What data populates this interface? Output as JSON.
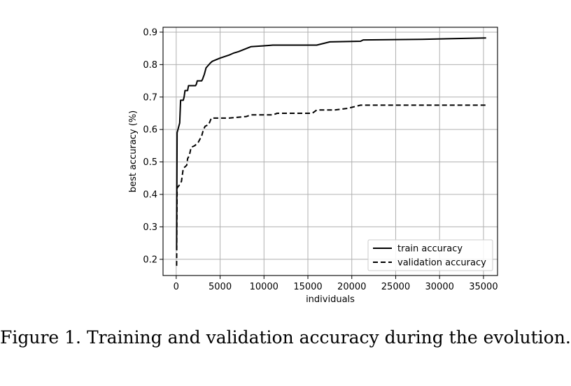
{
  "caption": "Figure 1.  Training and validation accuracy during the evolution.",
  "chart_data": {
    "type": "line",
    "title": "",
    "xlabel": "individuals",
    "ylabel": "best accuracy (%)",
    "xlim": [
      -1500,
      36600
    ],
    "ylim": [
      0.15,
      0.915
    ],
    "xticks": [
      0,
      5000,
      10000,
      15000,
      20000,
      25000,
      30000,
      35000
    ],
    "yticks": [
      0.2,
      0.3,
      0.4,
      0.5,
      0.6,
      0.7,
      0.8,
      0.9
    ],
    "xtick_labels": [
      "0",
      "5000",
      "10000",
      "15000",
      "20000",
      "25000",
      "30000",
      "35000"
    ],
    "ytick_labels": [
      "0.2",
      "0.3",
      "0.4",
      "0.5",
      "0.6",
      "0.7",
      "0.8",
      "0.9"
    ],
    "grid": true,
    "legend_position": "lower-right",
    "series": [
      {
        "name": "train accuracy",
        "line_style": "solid",
        "color": "#000000",
        "points": [
          [
            50,
            0.23
          ],
          [
            100,
            0.59
          ],
          [
            400,
            0.62
          ],
          [
            500,
            0.69
          ],
          [
            800,
            0.69
          ],
          [
            900,
            0.7
          ],
          [
            1000,
            0.72
          ],
          [
            1300,
            0.72
          ],
          [
            1400,
            0.735
          ],
          [
            2200,
            0.735
          ],
          [
            2300,
            0.74
          ],
          [
            2400,
            0.75
          ],
          [
            2900,
            0.75
          ],
          [
            3000,
            0.755
          ],
          [
            3200,
            0.77
          ],
          [
            3400,
            0.79
          ],
          [
            3900,
            0.805
          ],
          [
            4100,
            0.81
          ],
          [
            5000,
            0.82
          ],
          [
            6100,
            0.83
          ],
          [
            6500,
            0.835
          ],
          [
            7100,
            0.84
          ],
          [
            8500,
            0.855
          ],
          [
            10000,
            0.858
          ],
          [
            11000,
            0.86
          ],
          [
            16000,
            0.86
          ],
          [
            17500,
            0.87
          ],
          [
            21000,
            0.872
          ],
          [
            21300,
            0.876
          ],
          [
            28000,
            0.878
          ],
          [
            35300,
            0.882
          ]
        ]
      },
      {
        "name": "validation accuracy",
        "line_style": "dashed",
        "color": "#000000",
        "points": [
          [
            50,
            0.18
          ],
          [
            100,
            0.42
          ],
          [
            400,
            0.43
          ],
          [
            600,
            0.44
          ],
          [
            800,
            0.48
          ],
          [
            1200,
            0.49
          ],
          [
            1300,
            0.51
          ],
          [
            1500,
            0.52
          ],
          [
            1700,
            0.545
          ],
          [
            2100,
            0.55
          ],
          [
            2500,
            0.56
          ],
          [
            2900,
            0.58
          ],
          [
            3100,
            0.6
          ],
          [
            3300,
            0.61
          ],
          [
            3700,
            0.615
          ],
          [
            4000,
            0.635
          ],
          [
            6000,
            0.635
          ],
          [
            8000,
            0.64
          ],
          [
            8500,
            0.645
          ],
          [
            11000,
            0.645
          ],
          [
            11500,
            0.65
          ],
          [
            15500,
            0.65
          ],
          [
            16000,
            0.66
          ],
          [
            18000,
            0.66
          ],
          [
            19500,
            0.665
          ],
          [
            21000,
            0.675
          ],
          [
            35300,
            0.675
          ]
        ]
      }
    ]
  }
}
